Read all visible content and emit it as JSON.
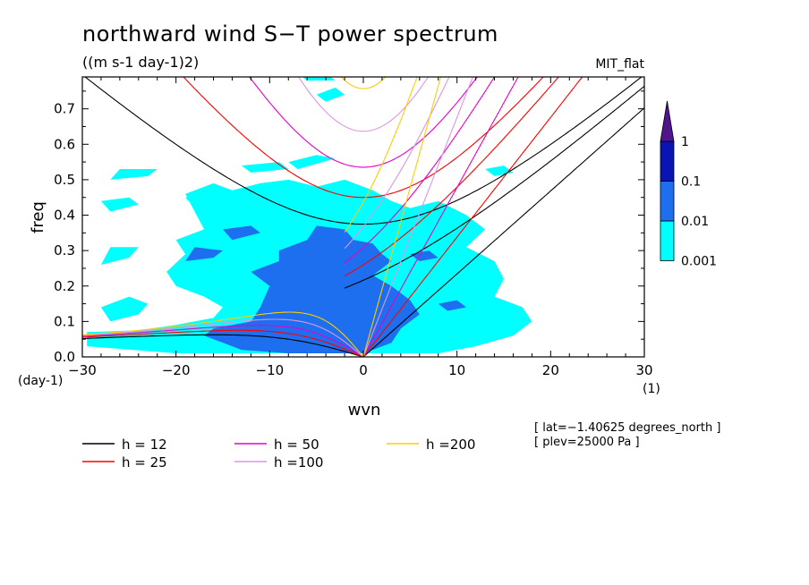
{
  "chart_data": {
    "type": "heatmap",
    "title": "northward wind S−T power spectrum",
    "subtitle": "((m s-1 day-1)2)",
    "model_label": "MIT_flat",
    "xlabel": "wvn",
    "ylabel": "freq",
    "x_unit": "(1)",
    "y_unit": "(day-1)",
    "xlim": [
      -30,
      30
    ],
    "ylim": [
      0,
      0.79
    ],
    "x_ticks": [
      -30,
      -20,
      -10,
      0,
      10,
      20,
      30
    ],
    "x_tick_labels": [
      "−30",
      "−20",
      "−10",
      "0",
      "10",
      "20",
      "30"
    ],
    "y_ticks": [
      0.0,
      0.1,
      0.2,
      0.3,
      0.4,
      0.5,
      0.6,
      0.7
    ],
    "y_tick_labels": [
      "0.0",
      "0.1",
      "0.2",
      "0.3",
      "0.4",
      "0.5",
      "0.6",
      "0.7"
    ],
    "info_lines": [
      "[ lat=−1.40625 degrees_north ]",
      "[ plev=25000 Pa ]"
    ],
    "colorbar": {
      "levels": [
        0.001,
        0.01,
        0.1,
        1
      ],
      "labels": [
        "0.001",
        "0.01",
        "0.1",
        "1"
      ],
      "colors": [
        "#00ffff",
        "#1e6ef0",
        "#0a14b4",
        "#50148c"
      ],
      "extend": "max"
    },
    "regions": [
      {
        "level": 0.001,
        "polygons": [
          [
            [
              -29.5,
              0.03
            ],
            [
              -29.5,
              0.07
            ],
            [
              -24,
              0.075
            ],
            [
              -20,
              0.09
            ],
            [
              -16,
              0.11
            ],
            [
              -15,
              0.14
            ],
            [
              -17,
              0.17
            ],
            [
              -20,
              0.2
            ],
            [
              -21,
              0.24
            ],
            [
              -19,
              0.29
            ],
            [
              -20,
              0.33
            ],
            [
              -17,
              0.36
            ],
            [
              -18,
              0.41
            ],
            [
              -19,
              0.46
            ],
            [
              -16,
              0.49
            ],
            [
              -14,
              0.47
            ],
            [
              -11,
              0.49
            ],
            [
              -8,
              0.5
            ],
            [
              -5,
              0.48
            ],
            [
              -2,
              0.5
            ],
            [
              1,
              0.47
            ],
            [
              3,
              0.44
            ],
            [
              5,
              0.42
            ],
            [
              8,
              0.44
            ],
            [
              11,
              0.4
            ],
            [
              13,
              0.36
            ],
            [
              11,
              0.31
            ],
            [
              14,
              0.27
            ],
            [
              15,
              0.22
            ],
            [
              14,
              0.17
            ],
            [
              17,
              0.14
            ],
            [
              18,
              0.1
            ],
            [
              16,
              0.06
            ],
            [
              12,
              0.03
            ],
            [
              8,
              0.01
            ],
            [
              2,
              0.01
            ],
            [
              -2,
              0.01
            ],
            [
              -10,
              0.01
            ],
            [
              -20,
              0.01
            ]
          ],
          [
            [
              -27,
              0.1
            ],
            [
              -24,
              0.12
            ],
            [
              -23,
              0.15
            ],
            [
              -25,
              0.17
            ],
            [
              -28,
              0.14
            ]
          ],
          [
            [
              -28,
              0.26
            ],
            [
              -25,
              0.28
            ],
            [
              -24,
              0.31
            ],
            [
              -27,
              0.31
            ]
          ],
          [
            [
              -27,
              0.41
            ],
            [
              -24,
              0.43
            ],
            [
              -25,
              0.45
            ],
            [
              -28,
              0.44
            ]
          ],
          [
            [
              -27,
              0.5
            ],
            [
              -23,
              0.51
            ],
            [
              -22,
              0.53
            ],
            [
              -26,
              0.53
            ]
          ],
          [
            [
              -12,
              0.52
            ],
            [
              -8,
              0.53
            ],
            [
              -9,
              0.55
            ],
            [
              -13,
              0.54
            ]
          ],
          [
            [
              -7,
              0.53
            ],
            [
              -3,
              0.56
            ],
            [
              -5,
              0.57
            ],
            [
              -8,
              0.55
            ]
          ],
          [
            [
              -4,
              0.72
            ],
            [
              -2,
              0.74
            ],
            [
              -3,
              0.76
            ],
            [
              -5,
              0.74
            ]
          ],
          [
            [
              -6,
              0.78
            ],
            [
              -3,
              0.78
            ],
            [
              -4,
              0.8
            ],
            [
              -7,
              0.8
            ]
          ],
          [
            [
              14,
              0.51
            ],
            [
              16,
              0.52
            ],
            [
              15,
              0.54
            ],
            [
              13,
              0.53
            ]
          ],
          [
            [
              -18,
              0.42
            ],
            [
              -15,
              0.44
            ],
            [
              -16,
              0.46
            ],
            [
              -19,
              0.45
            ]
          ]
        ]
      },
      {
        "level": 0.01,
        "polygons": [
          [
            [
              -17,
              0.06
            ],
            [
              -16,
              0.08
            ],
            [
              -12,
              0.1
            ],
            [
              -11,
              0.14
            ],
            [
              -10,
              0.2
            ],
            [
              -12,
              0.24
            ],
            [
              -9,
              0.27
            ],
            [
              -9,
              0.3
            ],
            [
              -6,
              0.33
            ],
            [
              -5,
              0.37
            ],
            [
              -2,
              0.36
            ],
            [
              -1,
              0.33
            ],
            [
              1,
              0.32
            ],
            [
              2,
              0.29
            ],
            [
              3,
              0.27
            ],
            [
              1,
              0.23
            ],
            [
              3,
              0.2
            ],
            [
              5,
              0.16
            ],
            [
              6,
              0.12
            ],
            [
              4,
              0.08
            ],
            [
              3,
              0.04
            ],
            [
              0,
              0.01
            ],
            [
              -3,
              0.01
            ],
            [
              -8,
              0.01
            ],
            [
              -13,
              0.02
            ]
          ],
          [
            [
              -19,
              0.27
            ],
            [
              -16,
              0.28
            ],
            [
              -15,
              0.3
            ],
            [
              -18,
              0.31
            ]
          ],
          [
            [
              -14,
              0.33
            ],
            [
              -11,
              0.35
            ],
            [
              -12,
              0.37
            ],
            [
              -15,
              0.36
            ]
          ],
          [
            [
              6,
              0.27
            ],
            [
              8,
              0.28
            ],
            [
              7,
              0.3
            ],
            [
              5,
              0.29
            ]
          ],
          [
            [
              9,
              0.13
            ],
            [
              11,
              0.14
            ],
            [
              10,
              0.16
            ],
            [
              8,
              0.15
            ]
          ]
        ]
      },
      {
        "level": 0.1,
        "polygons": []
      },
      {
        "level": 1,
        "polygons": []
      }
    ],
    "dispersion_curves": [
      {
        "name": "h = 12",
        "equivalent_depth_m": 12,
        "color": "#000000"
      },
      {
        "name": "h = 25",
        "equivalent_depth_m": 25,
        "color": "#ff0000"
      },
      {
        "name": "h = 50",
        "equivalent_depth_m": 50,
        "color": "#e600c8"
      },
      {
        "name": "h =100",
        "equivalent_depth_m": 100,
        "color": "#dc96e1"
      },
      {
        "name": "h =200",
        "equivalent_depth_m": 200,
        "color": "#ffcc00"
      }
    ],
    "legend": [
      {
        "name": "h = 12",
        "color": "#000000"
      },
      {
        "name": "h = 25",
        "color": "#ff0000"
      },
      {
        "name": "h = 50",
        "color": "#e600c8"
      },
      {
        "name": "h =100",
        "color": "#dc96e1"
      },
      {
        "name": "h =200",
        "color": "#ffcc00"
      }
    ],
    "legend_placement": "bottom",
    "grid": false
  }
}
